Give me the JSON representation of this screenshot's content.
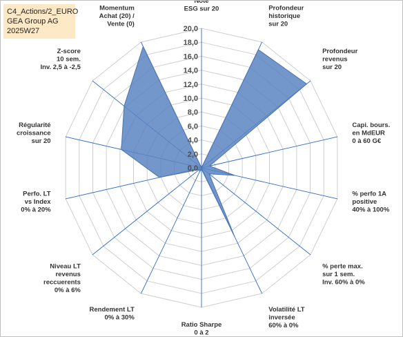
{
  "info": {
    "line1": "C4_Actions/2_EURO",
    "line2": "GEA Group AG",
    "line3": "2025W27"
  },
  "chart_data": {
    "type": "radar",
    "rmin": 0,
    "rmax": 20,
    "ticks": [
      "0,0",
      "2,0",
      "4,0",
      "6,0",
      "8,0",
      "10,0",
      "12,0",
      "14,0",
      "16,0",
      "18,0",
      "20,0"
    ],
    "axes": [
      {
        "label": [
          "Note",
          "ESG sur 20"
        ],
        "value": 0.0
      },
      {
        "label": [
          "Profondeur",
          "historique",
          "sur 20"
        ],
        "value": 18.8
      },
      {
        "label": [
          "Profondeur",
          "revenus",
          "sur 20"
        ],
        "value": 19.3
      },
      {
        "label": [
          "Capi. bours.",
          "en MdEUR",
          "0 à 60 G€"
        ],
        "value": 1.2
      },
      {
        "label": [
          "% perfo 1A",
          "positive",
          "40% à 100%"
        ],
        "value": 4.9
      },
      {
        "label": [
          "% perte max.",
          "sur 1 sem.",
          "Inv. 60% à 0%"
        ],
        "value": 1.4
      },
      {
        "label": [
          "Volatilité LT",
          "inversée",
          "60% à 0%"
        ],
        "value": 11.0
      },
      {
        "label": [
          "Ratio Sharpe",
          "0 à 2"
        ],
        "value": 0.2
      },
      {
        "label": [
          "Rendement LT",
          "0% à 30%"
        ],
        "value": 0.6
      },
      {
        "label": [
          "Niveau LT",
          "revenus",
          "reccuerents",
          "0% à 6%"
        ],
        "value": 0.4
      },
      {
        "label": [
          "Perfo. LT",
          "vs Index",
          "0% à 20%"
        ],
        "value": 6.2
      },
      {
        "label": [
          "Régularité",
          "croissance",
          "sur 20"
        ],
        "value": 11.8
      },
      {
        "label": [
          "Z-score",
          "10 sem.",
          "Inv. 2,5 à -2,5"
        ],
        "value": 14.2
      },
      {
        "label": [
          "Momentum",
          "Achat (20) /",
          "Vente (0)"
        ],
        "value": 19.3
      }
    ],
    "colors": {
      "fill": "#5a85c2",
      "fill_opacity": 0.85,
      "stroke": "#4a72ad",
      "grid": "#cfcfcf",
      "spoke": "#2e6cc7"
    }
  }
}
